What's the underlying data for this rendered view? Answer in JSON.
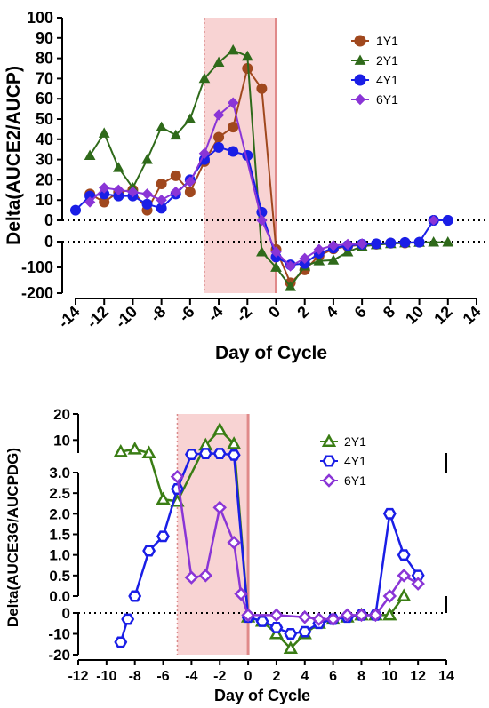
{
  "chart_data": [
    {
      "type": "line",
      "xlabel": "Day of Cycle",
      "ylabel": "Delta(AUCE2/AUCP)",
      "xlim": [
        -14,
        14
      ],
      "xticks": [
        -14,
        -12,
        -10,
        -8,
        -6,
        -4,
        -2,
        0,
        2,
        4,
        6,
        8,
        10,
        12,
        14
      ],
      "xtick_labels": [
        "-14",
        "-12",
        "-10",
        "-8",
        "-6",
        "-4",
        "-2",
        "0",
        "2",
        "4",
        "6",
        "8",
        "10",
        "12",
        "14"
      ],
      "y_segments": [
        {
          "range": [
            0,
            100
          ],
          "ticks": [
            0,
            10,
            20,
            30,
            40,
            50,
            60,
            70,
            80,
            90,
            100
          ],
          "labels": [
            "0",
            "10",
            "20",
            "30",
            "40",
            "50",
            "60",
            "70",
            "80",
            "90",
            "100"
          ]
        },
        {
          "range": [
            -200,
            0
          ],
          "ticks": [
            -200,
            -100,
            0
          ],
          "labels": [
            "-200",
            "-100",
            "0"
          ]
        }
      ],
      "shaded_region": {
        "x": [
          -5,
          0
        ],
        "color": "#f8d3d3"
      },
      "reference_lines": {
        "zero_dotted": true,
        "x_dotted": -5,
        "x_solid": 0
      },
      "legend_position": "top-right",
      "series": [
        {
          "name": "1Y1",
          "color": "#a0481e",
          "marker": "circle",
          "points": [
            [
              -13,
              13
            ],
            [
              -12,
              9
            ],
            [
              -11,
              14
            ],
            [
              -10,
              15
            ],
            [
              -9,
              5
            ],
            [
              -8,
              18
            ],
            [
              -7,
              22
            ],
            [
              -6,
              14
            ],
            [
              -5,
              29
            ],
            [
              -4,
              41
            ],
            [
              -3,
              46
            ],
            [
              -2,
              75
            ],
            [
              -1,
              65
            ],
            [
              0,
              -30
            ],
            [
              1,
              -160
            ],
            [
              2,
              -110
            ],
            [
              3,
              -55
            ],
            [
              4,
              -28
            ],
            [
              5,
              -18
            ],
            [
              6,
              -12
            ],
            [
              7,
              -10
            ],
            [
              8,
              -6
            ],
            [
              9,
              -5
            ]
          ]
        },
        {
          "name": "2Y1",
          "color": "#2f6a1a",
          "marker": "triangle",
          "points": [
            [
              -13,
              32
            ],
            [
              -12,
              43
            ],
            [
              -11,
              26
            ],
            [
              -10,
              16
            ],
            [
              -9,
              30
            ],
            [
              -8,
              46
            ],
            [
              -7,
              42
            ],
            [
              -6,
              50
            ],
            [
              -5,
              70
            ],
            [
              -4,
              78
            ],
            [
              -3,
              84
            ],
            [
              -2,
              81
            ],
            [
              -1,
              -40
            ],
            [
              0,
              -100
            ],
            [
              1,
              -175
            ],
            [
              2,
              -95
            ],
            [
              3,
              -75
            ],
            [
              4,
              -72
            ],
            [
              5,
              -40
            ],
            [
              6,
              -18
            ],
            [
              7,
              -12
            ],
            [
              8,
              -8
            ],
            [
              9,
              -5
            ],
            [
              10,
              -3
            ],
            [
              11,
              -2
            ],
            [
              12,
              -2
            ]
          ]
        },
        {
          "name": "4Y1",
          "color": "#1a1ee6",
          "marker": "circle",
          "points": [
            [
              -14,
              5
            ],
            [
              -13,
              12
            ],
            [
              -12,
              13
            ],
            [
              -11,
              12
            ],
            [
              -10,
              12
            ],
            [
              -9,
              8
            ],
            [
              -8,
              6
            ],
            [
              -7,
              13
            ],
            [
              -6,
              20
            ],
            [
              -5,
              30
            ],
            [
              -4,
              36
            ],
            [
              -3,
              34
            ],
            [
              -2,
              32
            ],
            [
              -1,
              4
            ],
            [
              0,
              -60
            ],
            [
              1,
              -90
            ],
            [
              2,
              -85
            ],
            [
              3,
              -45
            ],
            [
              4,
              -25
            ],
            [
              5,
              -15
            ],
            [
              6,
              -10
            ],
            [
              7,
              -8
            ],
            [
              8,
              -5
            ],
            [
              9,
              -3
            ],
            [
              10,
              -2
            ],
            [
              11,
              0
            ],
            [
              12,
              0
            ]
          ],
          "late_points": [
            [
              11,
              0
            ],
            [
              12,
              0
            ]
          ]
        },
        {
          "name": "6Y1",
          "color": "#8a35d6",
          "marker": "diamond",
          "points": [
            [
              -13,
              9
            ],
            [
              -12,
              16
            ],
            [
              -11,
              15
            ],
            [
              -10,
              14
            ],
            [
              -9,
              13
            ],
            [
              -8,
              10
            ],
            [
              -7,
              14
            ],
            [
              -6,
              19
            ],
            [
              -5,
              33
            ],
            [
              -4,
              52
            ],
            [
              -3,
              58
            ],
            [
              -1,
              0
            ],
            [
              0,
              -40
            ],
            [
              1,
              -95
            ],
            [
              2,
              -65
            ],
            [
              3,
              -30
            ],
            [
              4,
              -15
            ],
            [
              5,
              -10
            ],
            [
              6,
              -8
            ]
          ],
          "late_points": [
            [
              11,
              0
            ]
          ]
        }
      ]
    },
    {
      "type": "line",
      "xlabel": "Day of Cycle",
      "ylabel": "Delta(AUCE3G/AUCPDG)",
      "xlim": [
        -12,
        14
      ],
      "xticks": [
        -12,
        -10,
        -8,
        -6,
        -4,
        -2,
        0,
        2,
        4,
        6,
        8,
        10,
        12,
        14
      ],
      "xtick_labels": [
        "-12",
        "-10",
        "-8",
        "-6",
        "-4",
        "-2",
        "0",
        "2",
        "4",
        "6",
        "8",
        "10",
        "12",
        "14"
      ],
      "y_segments": [
        {
          "range": [
            5,
            20
          ],
          "ticks": [
            10,
            20
          ],
          "labels": [
            "10",
            "20"
          ]
        },
        {
          "range": [
            0,
            3
          ],
          "ticks": [
            0,
            0.5,
            1,
            1.5,
            2,
            2.5,
            3
          ],
          "labels": [
            "0.0",
            "0.5",
            "1.0",
            "1.5",
            "2.0",
            "2.5",
            "3.0"
          ]
        },
        {
          "range": [
            -20,
            0
          ],
          "ticks": [
            -20,
            -10,
            0
          ],
          "labels": [
            "-20",
            "-10",
            "0"
          ]
        }
      ],
      "shaded_region": {
        "x": [
          -5,
          0
        ],
        "color": "#f8d3d3"
      },
      "reference_lines": {
        "zero_dotted": true,
        "x_dotted": -5,
        "x_solid": 0
      },
      "legend_position": "top-right",
      "series": [
        {
          "name": "2Y1",
          "color": "#3a7d14",
          "marker": "triangle",
          "points": [
            [
              -9,
              5.5
            ],
            [
              -8,
              6.5
            ],
            [
              -7,
              5
            ],
            [
              -6,
              2.35
            ],
            [
              -5,
              2.3
            ],
            [
              -3,
              8
            ],
            [
              -2,
              14
            ],
            [
              -1,
              8.5
            ],
            [
              0,
              -2
            ],
            [
              1,
              -4
            ],
            [
              2,
              -10
            ],
            [
              3,
              -17
            ],
            [
              4,
              -10
            ],
            [
              5,
              -5
            ],
            [
              6,
              -3
            ],
            [
              7,
              -2
            ],
            [
              8,
              -1
            ],
            [
              9,
              -1
            ],
            [
              10,
              -1
            ],
            [
              11,
              0
            ]
          ]
        },
        {
          "name": "4Y1",
          "color": "#1a1ee6",
          "marker": "hexagon",
          "points": [
            [
              -9,
              -14
            ],
            [
              -8.5,
              -3
            ],
            [
              -8,
              0
            ],
            [
              -7,
              1.1
            ],
            [
              -6,
              1.45
            ],
            [
              -5,
              2.6
            ],
            [
              -4,
              4.5
            ],
            [
              -3,
              4.8
            ],
            [
              -2,
              4.8
            ],
            [
              -1,
              4.2
            ],
            [
              0,
              -2
            ],
            [
              1,
              -4
            ],
            [
              2,
              -7
            ],
            [
              3,
              -10
            ],
            [
              4,
              -9
            ],
            [
              5,
              -5
            ],
            [
              6,
              -3
            ],
            [
              7,
              -2
            ],
            [
              8,
              -1
            ],
            [
              9,
              -1
            ],
            [
              10,
              2
            ],
            [
              11,
              1
            ],
            [
              12,
              0.5
            ]
          ],
          "break_after_index": 1
        },
        {
          "name": "6Y1",
          "color": "#8a35d6",
          "marker": "diamond",
          "points": [
            [
              -5,
              2.9
            ],
            [
              -4,
              0.45
            ],
            [
              -3,
              0.5
            ],
            [
              -2,
              2.15
            ],
            [
              -1,
              1.3
            ],
            [
              -0.5,
              0.05
            ],
            [
              0,
              -1
            ],
            [
              2,
              -1
            ],
            [
              4,
              -2
            ],
            [
              5,
              -3
            ],
            [
              6,
              -3
            ],
            [
              7,
              -1
            ],
            [
              8,
              -1
            ],
            [
              9,
              -1
            ],
            [
              10,
              0
            ],
            [
              11,
              0.5
            ],
            [
              12,
              0.3
            ]
          ],
          "start_index_line": 0
        }
      ]
    }
  ]
}
